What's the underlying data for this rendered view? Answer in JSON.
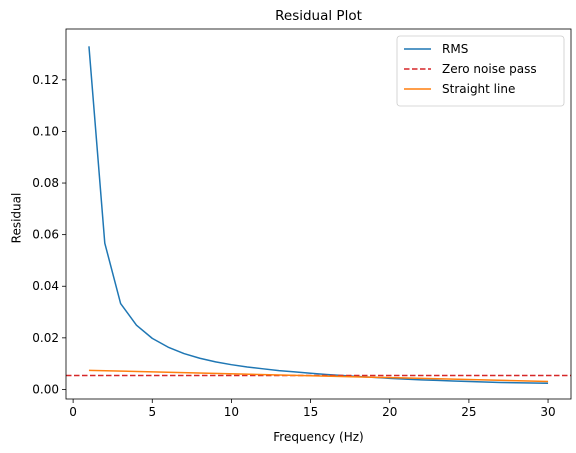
{
  "chart_data": {
    "type": "line",
    "title": "Residual Plot",
    "xlabel": "Frequency (Hz)",
    "ylabel": "Residual",
    "xlim": [
      -0.45,
      31.45
    ],
    "ylim": [
      -0.0037,
      0.1397
    ],
    "xticks": [
      0,
      5,
      10,
      15,
      20,
      25,
      30
    ],
    "yticks": [
      0.0,
      0.02,
      0.04,
      0.06,
      0.08,
      0.1,
      0.12
    ],
    "ytick_labels": [
      "0.00",
      "0.02",
      "0.04",
      "0.06",
      "0.08",
      "0.10",
      "0.12"
    ],
    "grid": false,
    "legend_position": "upper right",
    "series": [
      {
        "name": "RMS",
        "color": "#1f77b4",
        "style": "solid",
        "x": [
          1,
          2,
          3,
          4,
          5,
          6,
          7,
          8,
          9,
          10,
          11,
          12,
          13,
          14,
          15,
          16,
          17,
          18,
          19,
          20,
          21,
          22,
          23,
          24,
          25,
          26,
          27,
          28,
          29,
          30
        ],
        "y": [
          0.133,
          0.0567,
          0.0333,
          0.0249,
          0.0198,
          0.0164,
          0.0139,
          0.0121,
          0.0107,
          0.0096,
          0.0087,
          0.008,
          0.0073,
          0.0068,
          0.0063,
          0.0058,
          0.0054,
          0.005,
          0.0047,
          0.0043,
          0.004,
          0.0037,
          0.0035,
          0.0033,
          0.0031,
          0.0029,
          0.0027,
          0.0026,
          0.0025,
          0.0024
        ]
      },
      {
        "name": "Zero noise pass",
        "color": "#d62728",
        "style": "dashed",
        "hline": 0.0054
      },
      {
        "name": "Straight line",
        "color": "#ff7f0e",
        "style": "solid",
        "x": [
          1,
          30
        ],
        "y": [
          0.0074,
          0.0031
        ]
      }
    ]
  }
}
